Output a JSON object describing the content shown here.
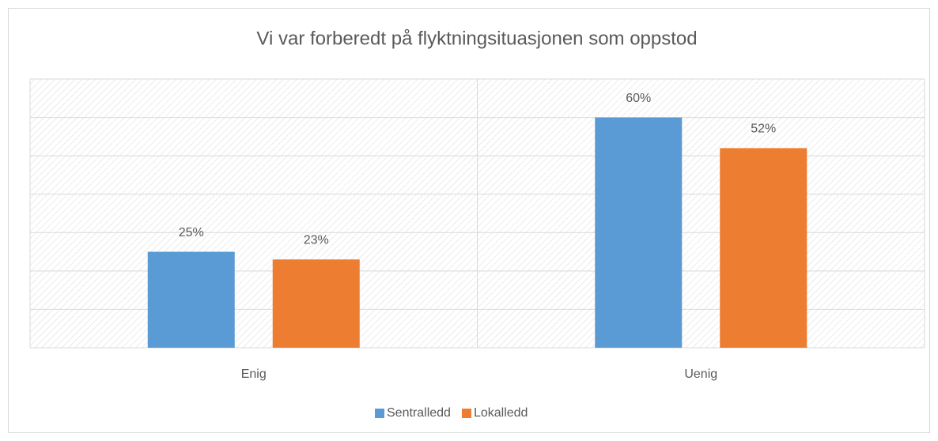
{
  "chart_data": {
    "type": "bar",
    "title": "Vi var forberedt på flyktningsituasjonen som oppstod",
    "categories": [
      "Enig",
      "Uenig"
    ],
    "series": [
      {
        "name": "Sentralledd",
        "color": "#5b9bd5",
        "values": [
          25,
          60
        ],
        "value_labels": [
          "25%",
          "60%"
        ]
      },
      {
        "name": "Lokalledd",
        "color": "#ed7d31",
        "values": [
          23,
          52
        ],
        "value_labels": [
          "23%",
          "52%"
        ]
      }
    ],
    "ylim": [
      0,
      70
    ],
    "yticks": [
      0,
      10,
      20,
      30,
      40,
      50,
      60,
      70
    ],
    "grid": true,
    "legend": "bottom"
  }
}
